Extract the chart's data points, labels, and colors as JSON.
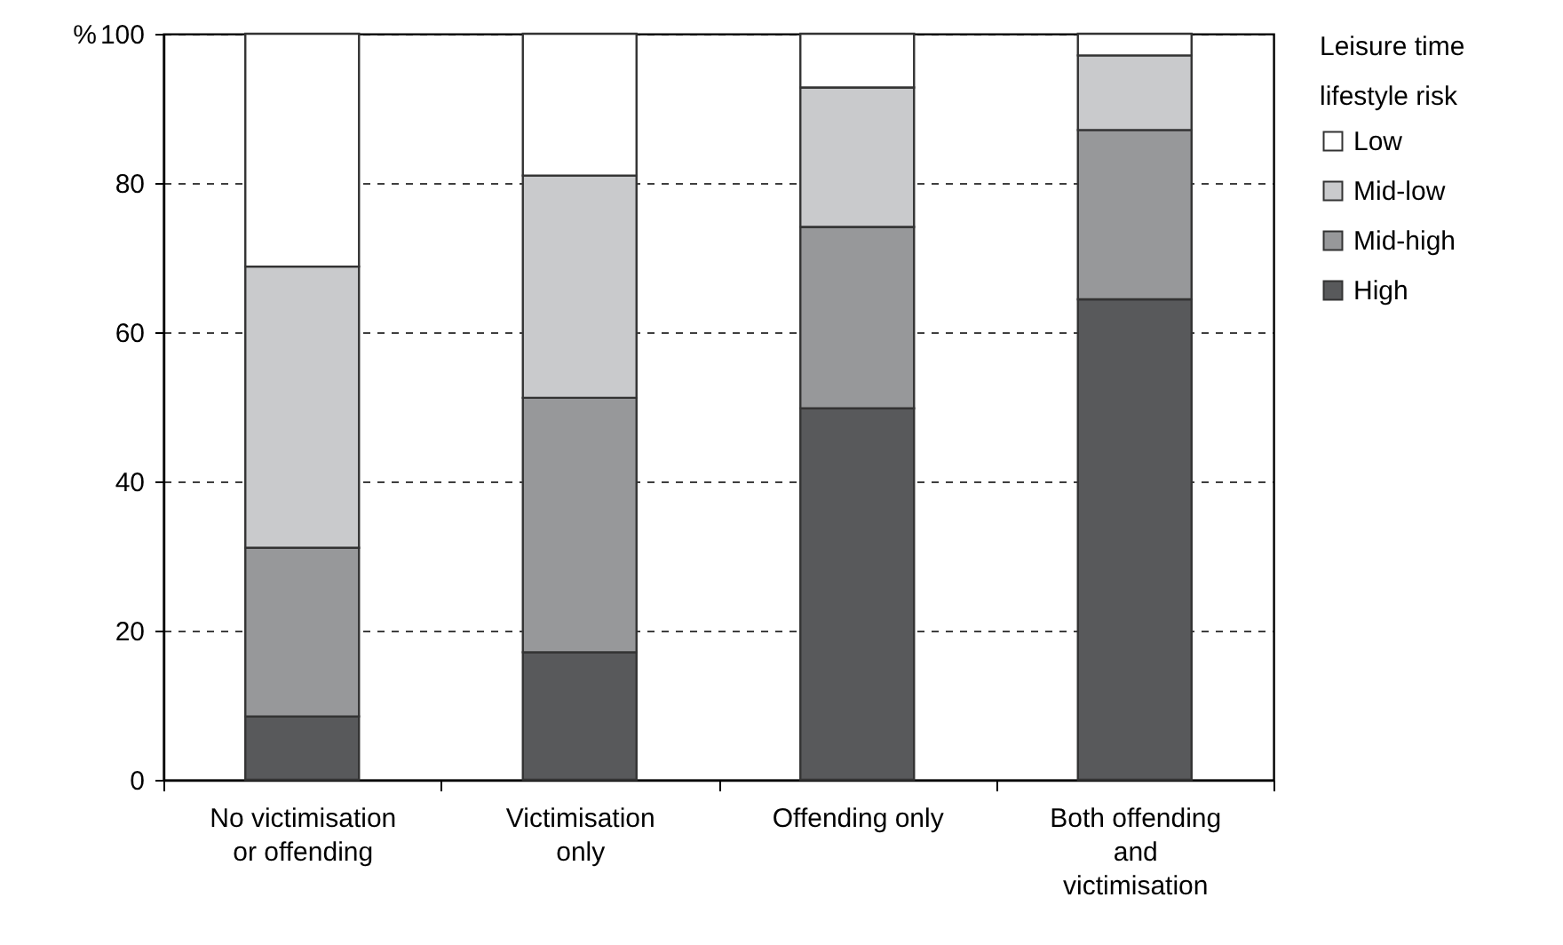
{
  "chart_data": {
    "type": "bar",
    "stacked": true,
    "ylabel": "%",
    "legend_title": "Leisure time lifestyle risk",
    "legend": "right",
    "grid": "y",
    "categories": [
      "No victimisation or offending",
      "Victimisation only",
      "Offending only",
      "Both offending and victimisation"
    ],
    "ylim": [
      0,
      100
    ],
    "yticks": [
      0,
      20,
      40,
      60,
      80,
      100
    ],
    "series": [
      {
        "name": "High",
        "color": "#58595b",
        "values": [
          8.5,
          17.1,
          49.8,
          64.4
        ]
      },
      {
        "name": "Mid-high",
        "color": "#97989a",
        "values": [
          22.6,
          34.1,
          24.3,
          22.7
        ]
      },
      {
        "name": "Mid-low",
        "color": "#c9cacc",
        "values": [
          37.7,
          29.8,
          18.7,
          10.0
        ]
      },
      {
        "name": "Low",
        "color": "#ffffff",
        "values": [
          31.2,
          19.0,
          7.2,
          2.9
        ]
      }
    ]
  }
}
